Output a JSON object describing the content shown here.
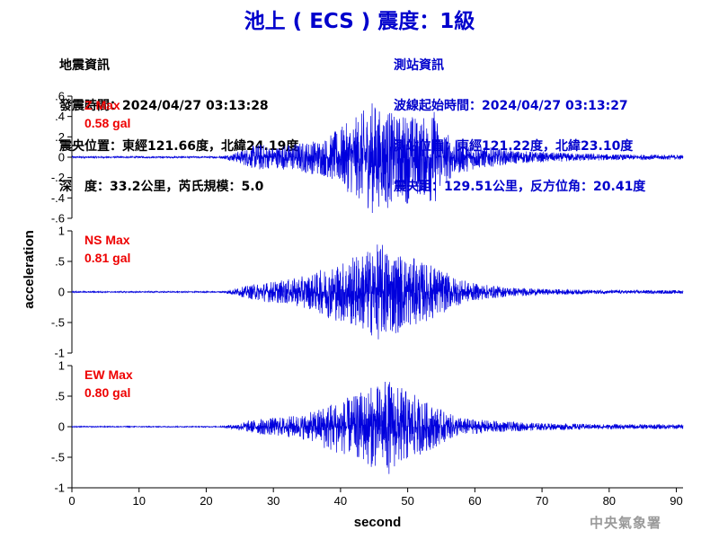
{
  "title": "池上 ( ECS ) 震度：1級",
  "earthquake_info": {
    "heading": "地震資訊",
    "origin_time": "發震時間：2024/04/27 03:13:28",
    "epicenter": "震央位置：東經121.66度，北緯24.19度",
    "depth_magnitude": "深　度：33.2公里，芮氏規模：5.0"
  },
  "station_info": {
    "heading": "測站資訊",
    "wave_start": "波線起始時間：2024/04/27 03:13:27",
    "location": "測站位置：東經121.22度，北緯23.10度",
    "distance_azimuth": "震央距：129.51公里，反方位角：20.41度"
  },
  "watermark": "中央氣象署",
  "colors": {
    "trace": "#0000dd",
    "max_label": "#ee0000",
    "title": "#0000cc",
    "axis": "#000000"
  },
  "chart_data": {
    "type": "line",
    "xlabel": "second",
    "ylabel": "acceleration",
    "xlim": [
      0,
      91
    ],
    "xticks": [
      0,
      10,
      20,
      30,
      40,
      50,
      60,
      70,
      80,
      90
    ],
    "panels": [
      {
        "name": "Z Max",
        "max_value": "0.58 gal",
        "ylim": [
          -0.6,
          0.6
        ],
        "yticks": [
          -0.6,
          -0.4,
          -0.2,
          0,
          0.2,
          0.4,
          0.6
        ],
        "envelope": [
          [
            0,
            0.008
          ],
          [
            22,
            0.008
          ],
          [
            24,
            0.04
          ],
          [
            26,
            0.09
          ],
          [
            28,
            0.14
          ],
          [
            30,
            0.1
          ],
          [
            32,
            0.13
          ],
          [
            34,
            0.15
          ],
          [
            36,
            0.17
          ],
          [
            38,
            0.2
          ],
          [
            40,
            0.3
          ],
          [
            42,
            0.38
          ],
          [
            44,
            0.5
          ],
          [
            45,
            0.58
          ],
          [
            46,
            0.45
          ],
          [
            47,
            0.52
          ],
          [
            48,
            0.4
          ],
          [
            50,
            0.46
          ],
          [
            52,
            0.38
          ],
          [
            54,
            0.48
          ],
          [
            55,
            0.3
          ],
          [
            57,
            0.18
          ],
          [
            60,
            0.12
          ],
          [
            65,
            0.07
          ],
          [
            70,
            0.05
          ],
          [
            75,
            0.04
          ],
          [
            80,
            0.03
          ],
          [
            85,
            0.025
          ],
          [
            91,
            0.025
          ]
        ]
      },
      {
        "name": "NS Max",
        "max_value": "0.81 gal",
        "ylim": [
          -1,
          1
        ],
        "yticks": [
          -1,
          -0.5,
          0,
          0.5,
          1
        ],
        "envelope": [
          [
            0,
            0.01
          ],
          [
            22,
            0.01
          ],
          [
            24,
            0.05
          ],
          [
            26,
            0.1
          ],
          [
            28,
            0.15
          ],
          [
            30,
            0.18
          ],
          [
            32,
            0.2
          ],
          [
            34,
            0.25
          ],
          [
            36,
            0.3
          ],
          [
            38,
            0.42
          ],
          [
            40,
            0.5
          ],
          [
            42,
            0.6
          ],
          [
            44,
            0.7
          ],
          [
            46,
            0.81
          ],
          [
            48,
            0.7
          ],
          [
            50,
            0.6
          ],
          [
            52,
            0.5
          ],
          [
            54,
            0.45
          ],
          [
            56,
            0.3
          ],
          [
            58,
            0.2
          ],
          [
            60,
            0.14
          ],
          [
            65,
            0.08
          ],
          [
            70,
            0.05
          ],
          [
            75,
            0.04
          ],
          [
            80,
            0.03
          ],
          [
            91,
            0.03
          ]
        ]
      },
      {
        "name": "EW Max",
        "max_value": "0.80 gal",
        "ylim": [
          -1,
          1
        ],
        "yticks": [
          -1,
          -0.5,
          0,
          0.5,
          1
        ],
        "envelope": [
          [
            0,
            0.008
          ],
          [
            22,
            0.008
          ],
          [
            24,
            0.04
          ],
          [
            26,
            0.09
          ],
          [
            28,
            0.13
          ],
          [
            30,
            0.15
          ],
          [
            32,
            0.17
          ],
          [
            34,
            0.2
          ],
          [
            36,
            0.25
          ],
          [
            38,
            0.4
          ],
          [
            40,
            0.45
          ],
          [
            42,
            0.5
          ],
          [
            44,
            0.65
          ],
          [
            46,
            0.7
          ],
          [
            47,
            0.8
          ],
          [
            48,
            0.7
          ],
          [
            50,
            0.6
          ],
          [
            52,
            0.45
          ],
          [
            54,
            0.35
          ],
          [
            56,
            0.22
          ],
          [
            58,
            0.15
          ],
          [
            60,
            0.12
          ],
          [
            65,
            0.08
          ],
          [
            70,
            0.06
          ],
          [
            75,
            0.05
          ],
          [
            80,
            0.04
          ],
          [
            91,
            0.04
          ]
        ]
      }
    ]
  }
}
